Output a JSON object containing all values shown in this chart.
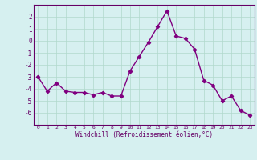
{
  "x": [
    0,
    1,
    2,
    3,
    4,
    5,
    6,
    7,
    8,
    9,
    10,
    11,
    12,
    13,
    14,
    15,
    16,
    17,
    18,
    19,
    20,
    21,
    22,
    23
  ],
  "y": [
    -3.0,
    -4.2,
    -3.5,
    -4.2,
    -4.3,
    -4.3,
    -4.5,
    -4.3,
    -4.6,
    -4.6,
    -2.5,
    -1.3,
    -0.1,
    1.2,
    2.5,
    0.4,
    0.2,
    -0.7,
    -3.3,
    -3.7,
    -5.0,
    -4.6,
    -5.8,
    -6.2
  ],
  "line_color": "#800080",
  "marker": "D",
  "marker_size": 2.2,
  "background_color": "#d6f0f0",
  "grid_color": "#b0d8cc",
  "xlabel": "Windchill (Refroidissement éolien,°C)",
  "xlim": [
    -0.5,
    23.5
  ],
  "ylim": [
    -7,
    3
  ],
  "yticks": [
    -6,
    -5,
    -4,
    -3,
    -2,
    -1,
    0,
    1,
    2
  ],
  "xticks": [
    0,
    1,
    2,
    3,
    4,
    5,
    6,
    7,
    8,
    9,
    10,
    11,
    12,
    13,
    14,
    15,
    16,
    17,
    18,
    19,
    20,
    21,
    22,
    23
  ],
  "tick_color": "#660066",
  "axis_color": "#660066",
  "line_width": 1.0
}
